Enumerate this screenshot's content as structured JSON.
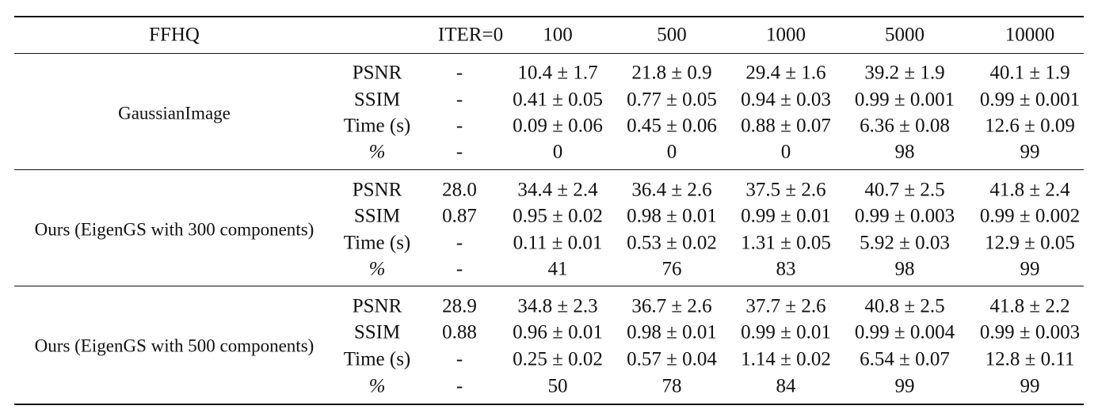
{
  "table": {
    "headers": [
      "FFHQ",
      "ITER=0",
      "100",
      "500",
      "1000",
      "5000",
      "10000"
    ],
    "metrics": [
      "PSNR",
      "SSIM",
      "Time (s)",
      "%"
    ],
    "groups": [
      {
        "method": "GaussianImage",
        "rows": [
          [
            "-",
            "10.4 ± 1.7",
            "21.8 ± 0.9",
            "29.4 ± 1.6",
            "39.2 ± 1.9",
            "40.1 ± 1.9"
          ],
          [
            "-",
            "0.41 ± 0.05",
            "0.77 ± 0.05",
            "0.94 ± 0.03",
            "0.99 ± 0.001",
            "0.99 ± 0.001"
          ],
          [
            "-",
            "0.09 ± 0.06",
            "0.45 ± 0.06",
            "0.88 ± 0.07",
            "6.36 ± 0.08",
            "12.6 ± 0.09"
          ],
          [
            "-",
            "0",
            "0",
            "0",
            "98",
            "99"
          ]
        ]
      },
      {
        "method": "Ours (EigenGS with 300 components)",
        "rows": [
          [
            "28.0",
            "34.4 ± 2.4",
            "36.4 ± 2.6",
            "37.5 ± 2.6",
            "40.7 ± 2.5",
            "41.8 ± 2.4"
          ],
          [
            "0.87",
            "0.95 ± 0.02",
            "0.98 ± 0.01",
            "0.99 ± 0.01",
            "0.99 ± 0.003",
            "0.99 ± 0.002"
          ],
          [
            "-",
            "0.11 ± 0.01",
            "0.53 ± 0.02",
            "1.31 ± 0.05",
            "5.92 ± 0.03",
            "12.9 ± 0.05"
          ],
          [
            "-",
            "41",
            "76",
            "83",
            "98",
            "99"
          ]
        ]
      },
      {
        "method": "Ours (EigenGS with 500 components)",
        "rows": [
          [
            "28.9",
            "34.8 ± 2.3",
            "36.7 ± 2.6",
            "37.7 ± 2.6",
            "40.8 ± 2.5",
            "41.8 ± 2.2"
          ],
          [
            "0.88",
            "0.96 ± 0.01",
            "0.98 ± 0.01",
            "0.99 ± 0.01",
            "0.99 ± 0.004",
            "0.99 ± 0.003"
          ],
          [
            "-",
            "0.25 ± 0.02",
            "0.57 ± 0.04",
            "1.14 ± 0.02",
            "6.54 ± 0.07",
            "12.8 ± 0.11"
          ],
          [
            "-",
            "50",
            "78",
            "84",
            "99",
            "99"
          ]
        ]
      }
    ]
  }
}
